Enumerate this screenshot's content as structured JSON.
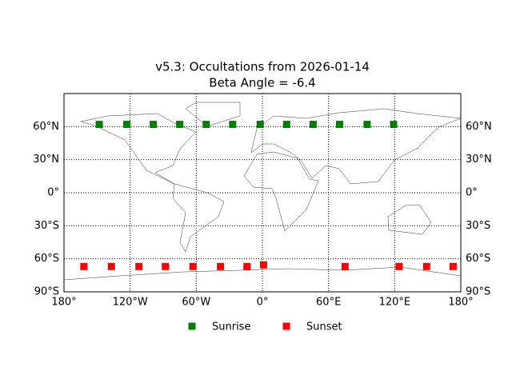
{
  "chart_data": {
    "type": "scatter",
    "title": "v5.3: Occultations from 2026-01-14",
    "subtitle": "Beta Angle = -6.4",
    "xlim": [
      -180,
      180
    ],
    "ylim": [
      -90,
      90
    ],
    "xticks": [
      {
        "value": -180,
        "label": "180°"
      },
      {
        "value": -120,
        "label": "120°W"
      },
      {
        "value": -60,
        "label": "60°W"
      },
      {
        "value": 0,
        "label": "0°"
      },
      {
        "value": 60,
        "label": "60°E"
      },
      {
        "value": 120,
        "label": "120°E"
      },
      {
        "value": 180,
        "label": "180°"
      }
    ],
    "yticks": [
      {
        "value": -90,
        "label": "90°S"
      },
      {
        "value": -60,
        "label": "60°S"
      },
      {
        "value": -30,
        "label": "30°S"
      },
      {
        "value": 0,
        "label": "0°"
      },
      {
        "value": 30,
        "label": "30°N"
      },
      {
        "value": 60,
        "label": "60°N"
      }
    ],
    "grid": true,
    "legend": "bottom",
    "series": [
      {
        "name": "Sunrise",
        "color": "#008000",
        "x": [
          -148,
          -123,
          -99,
          -75,
          -51,
          -27,
          -2,
          22,
          46,
          70,
          95,
          119
        ],
        "values": [
          62,
          62,
          62,
          62,
          62,
          62,
          62,
          62,
          62,
          62,
          62,
          62
        ]
      },
      {
        "name": "Sunset",
        "color": "#ff0000",
        "x": [
          -162,
          -137,
          -112,
          -88,
          -63,
          -38,
          -14,
          1,
          75,
          124,
          149,
          173
        ],
        "values": [
          -67,
          -67,
          -67,
          -67,
          -67,
          -67,
          -67,
          -65.5,
          -67,
          -67,
          -67,
          -67
        ]
      }
    ]
  }
}
